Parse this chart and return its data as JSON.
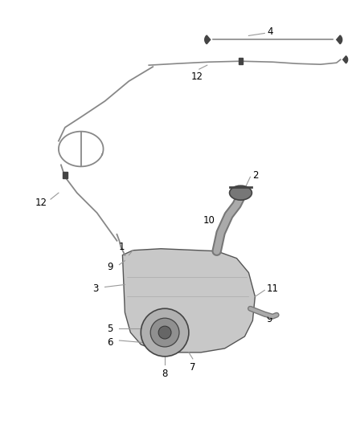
{
  "bg_color": "#ffffff",
  "fig_width": 4.38,
  "fig_height": 5.33,
  "dpi": 100,
  "line_color": "#888888",
  "part_color": "#444444",
  "label_fontsize": 8.5
}
